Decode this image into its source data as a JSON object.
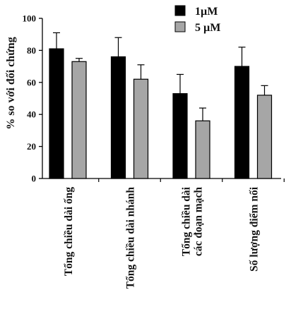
{
  "chart_data": {
    "type": "bar",
    "ylabel": "% so với đối chứng",
    "xlabel": "",
    "ylim": [
      0,
      100
    ],
    "yticks": [
      0,
      20,
      40,
      60,
      80,
      100
    ],
    "categories": [
      [
        "Tổng chiều dài ống"
      ],
      [
        "Tổng chiều dài nhánh"
      ],
      [
        "Tổng chiều dài",
        "các đoạn mạch"
      ],
      [
        "Số lượng điểm nối"
      ]
    ],
    "series": [
      {
        "name": "1µM",
        "color": "#000000",
        "values": [
          81,
          76,
          53,
          70
        ],
        "errors": [
          10,
          12,
          12,
          12
        ]
      },
      {
        "name": "5 µM",
        "color": "#a6a6a6",
        "values": [
          73,
          62,
          36,
          52
        ],
        "errors": [
          2,
          9,
          8,
          6
        ]
      }
    ],
    "legend": "top-right",
    "grid": false
  }
}
